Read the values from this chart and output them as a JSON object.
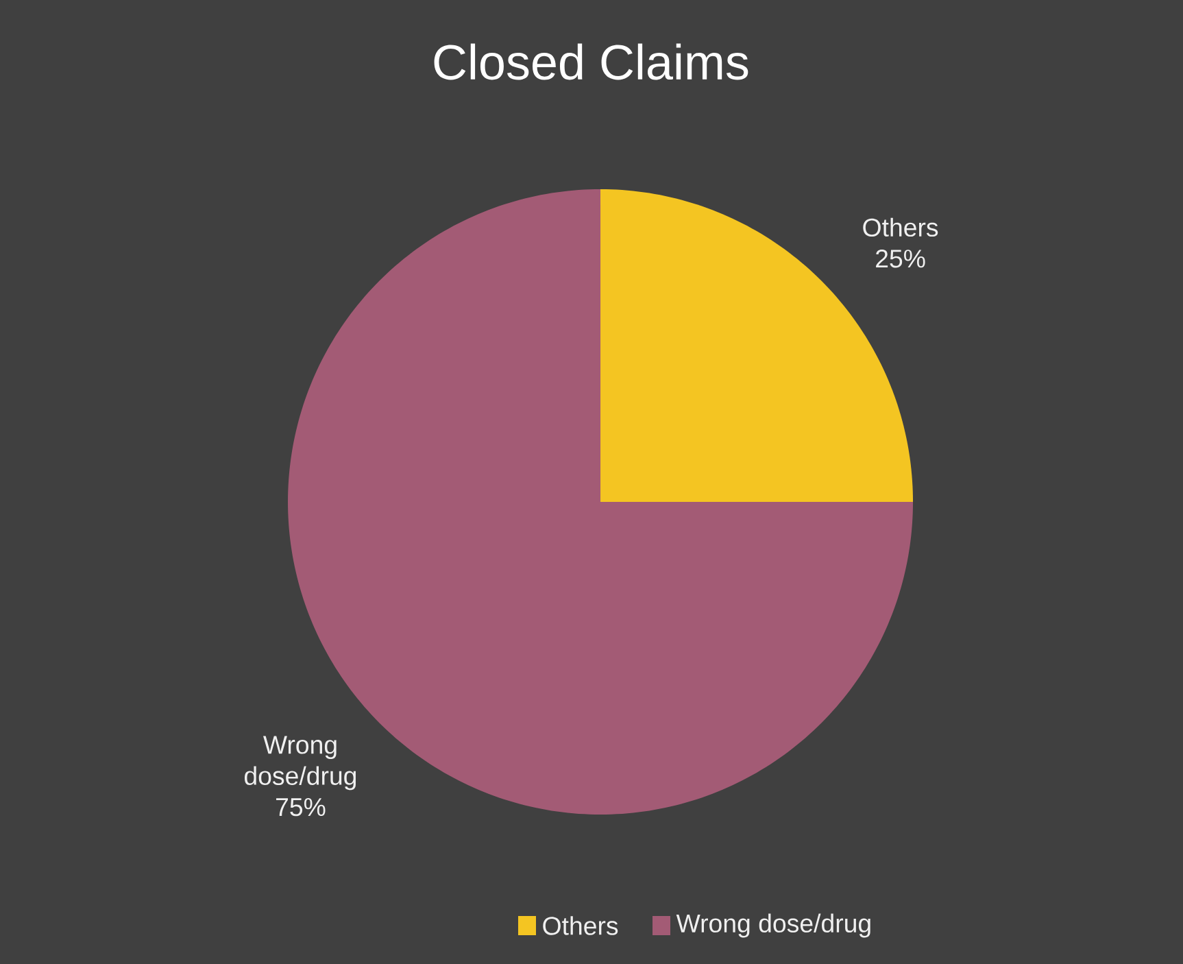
{
  "chart_data": {
    "type": "pie",
    "title": "Closed Claims",
    "categories": [
      "Others",
      "Wrong dose/drug"
    ],
    "values": [
      25,
      75
    ],
    "colors": [
      "#f4c522",
      "#a35b75"
    ],
    "value_labels": [
      "25%",
      "75%"
    ],
    "legend": "bottom"
  }
}
